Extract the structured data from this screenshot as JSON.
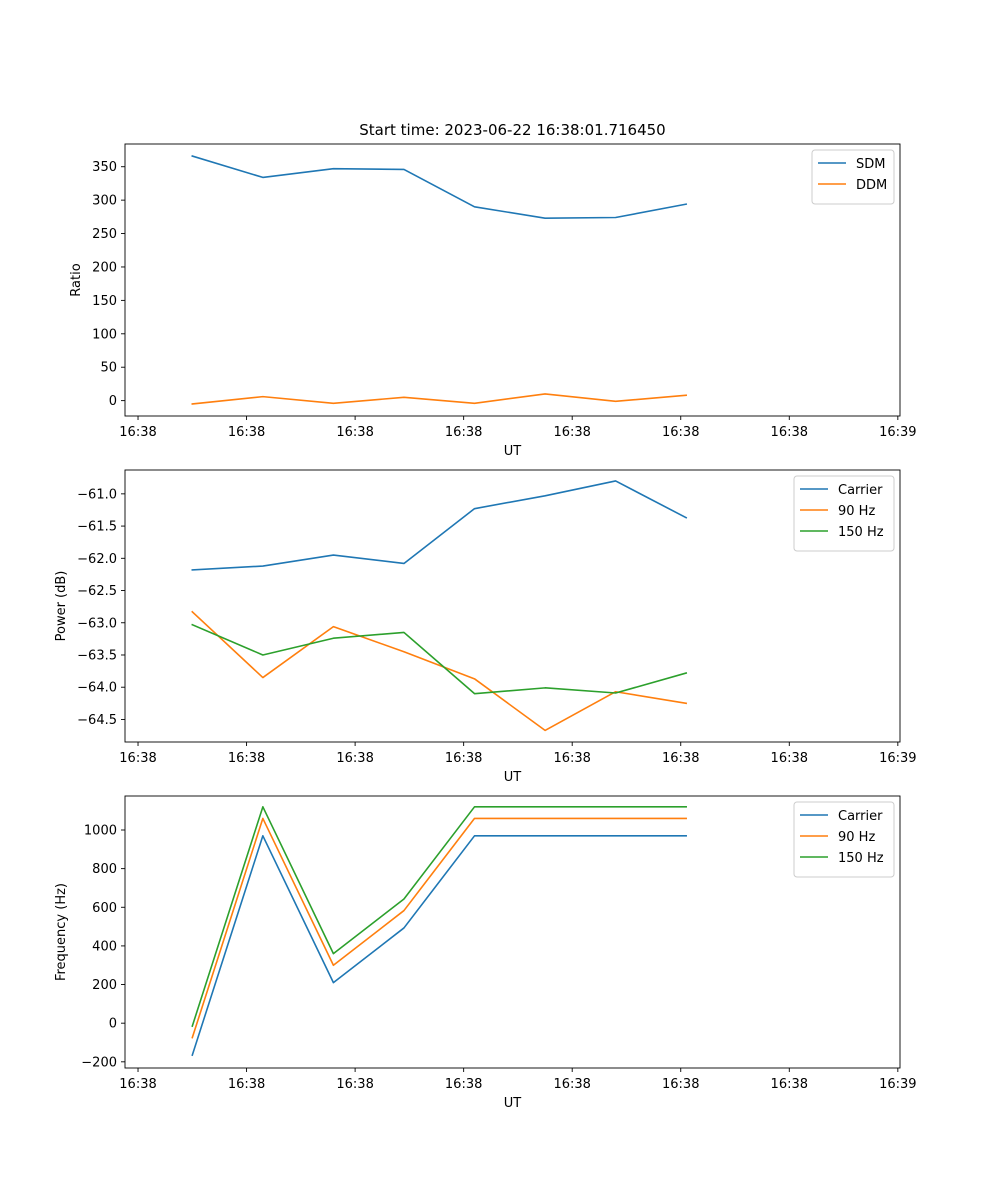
{
  "figure_title": "Start time: 2023-06-22 16:38:01.716450",
  "colors": {
    "series_1": "#1f77b4",
    "series_2": "#ff7f0e",
    "series_3": "#2ca02c"
  },
  "chart_data": [
    {
      "type": "line",
      "title": "Start time: 2023-06-22 16:38:01.716450",
      "xlabel": "UT",
      "ylabel": "Ratio",
      "x_ticks": [
        "16:38",
        "16:38",
        "16:38",
        "16:38",
        "16:38",
        "16:38",
        "16:38",
        "16:39"
      ],
      "x_tick_positions": [
        0,
        1,
        2,
        3,
        4,
        5,
        6,
        7
      ],
      "x": [
        0.5,
        1.15,
        1.8,
        2.45,
        3.1,
        3.75,
        4.4,
        5.05
      ],
      "xlim": [
        -0.12,
        7.02
      ],
      "ylim": [
        -23,
        384
      ],
      "y_ticks": [
        0,
        50,
        100,
        150,
        200,
        250,
        300,
        350
      ],
      "grid": false,
      "legend": "top-right",
      "series": [
        {
          "name": "SDM",
          "color": "#1f77b4",
          "values": [
            366,
            334,
            347,
            346,
            290,
            273,
            274,
            294
          ]
        },
        {
          "name": "DDM",
          "color": "#ff7f0e",
          "values": [
            -5,
            6,
            -4,
            5,
            -4,
            10,
            -1,
            8
          ]
        }
      ]
    },
    {
      "type": "line",
      "title": "",
      "xlabel": "UT",
      "ylabel": "Power (dB)",
      "x_ticks": [
        "16:38",
        "16:38",
        "16:38",
        "16:38",
        "16:38",
        "16:38",
        "16:38",
        "16:39"
      ],
      "x_tick_positions": [
        0,
        1,
        2,
        3,
        4,
        5,
        6,
        7
      ],
      "x": [
        0.5,
        1.15,
        1.8,
        2.45,
        3.1,
        3.75,
        4.4,
        5.05
      ],
      "xlim": [
        -0.12,
        7.02
      ],
      "ylim": [
        -64.85,
        -60.63
      ],
      "y_ticks": [
        -64.5,
        -64.0,
        -63.5,
        -63.0,
        -62.5,
        -62.0,
        -61.5,
        -61.0
      ],
      "y_tick_labels": [
        "−64.5",
        "−64.0",
        "−63.5",
        "−63.0",
        "−62.5",
        "−62.0",
        "−61.5",
        "−61.0"
      ],
      "grid": false,
      "legend": "top-right",
      "series": [
        {
          "name": "Carrier",
          "color": "#1f77b4",
          "values": [
            -62.18,
            -62.12,
            -61.95,
            -62.08,
            -61.23,
            -61.03,
            -60.8,
            -61.37
          ]
        },
        {
          "name": "90 Hz",
          "color": "#ff7f0e",
          "values": [
            -62.83,
            -63.85,
            -63.06,
            -63.45,
            -63.87,
            -64.67,
            -64.07,
            -64.25
          ]
        },
        {
          "name": "150 Hz",
          "color": "#2ca02c",
          "values": [
            -63.03,
            -63.5,
            -63.24,
            -63.15,
            -64.1,
            -64.01,
            -64.09,
            -63.78
          ]
        }
      ]
    },
    {
      "type": "line",
      "title": "",
      "xlabel": "UT",
      "ylabel": "Frequency (Hz)",
      "x_ticks": [
        "16:38",
        "16:38",
        "16:38",
        "16:38",
        "16:38",
        "16:38",
        "16:38",
        "16:39"
      ],
      "x_tick_positions": [
        0,
        1,
        2,
        3,
        4,
        5,
        6,
        7
      ],
      "x": [
        0.5,
        1.15,
        1.8,
        2.45,
        3.1,
        3.75,
        4.4,
        5.05
      ],
      "xlim": [
        -0.12,
        7.02
      ],
      "ylim": [
        -232,
        1176
      ],
      "y_ticks": [
        -200,
        0,
        200,
        400,
        600,
        800,
        1000
      ],
      "y_tick_labels": [
        "−200",
        "0",
        "200",
        "400",
        "600",
        "800",
        "1000"
      ],
      "grid": false,
      "legend": "top-right",
      "series": [
        {
          "name": "Carrier",
          "color": "#1f77b4",
          "values": [
            -165,
            970,
            210,
            493,
            970,
            970,
            970,
            970
          ]
        },
        {
          "name": "90 Hz",
          "color": "#ff7f0e",
          "values": [
            -75,
            1060,
            300,
            583,
            1060,
            1060,
            1060,
            1060
          ]
        },
        {
          "name": "150 Hz",
          "color": "#2ca02c",
          "values": [
            -15,
            1120,
            360,
            643,
            1120,
            1120,
            1120,
            1120
          ]
        }
      ]
    }
  ]
}
